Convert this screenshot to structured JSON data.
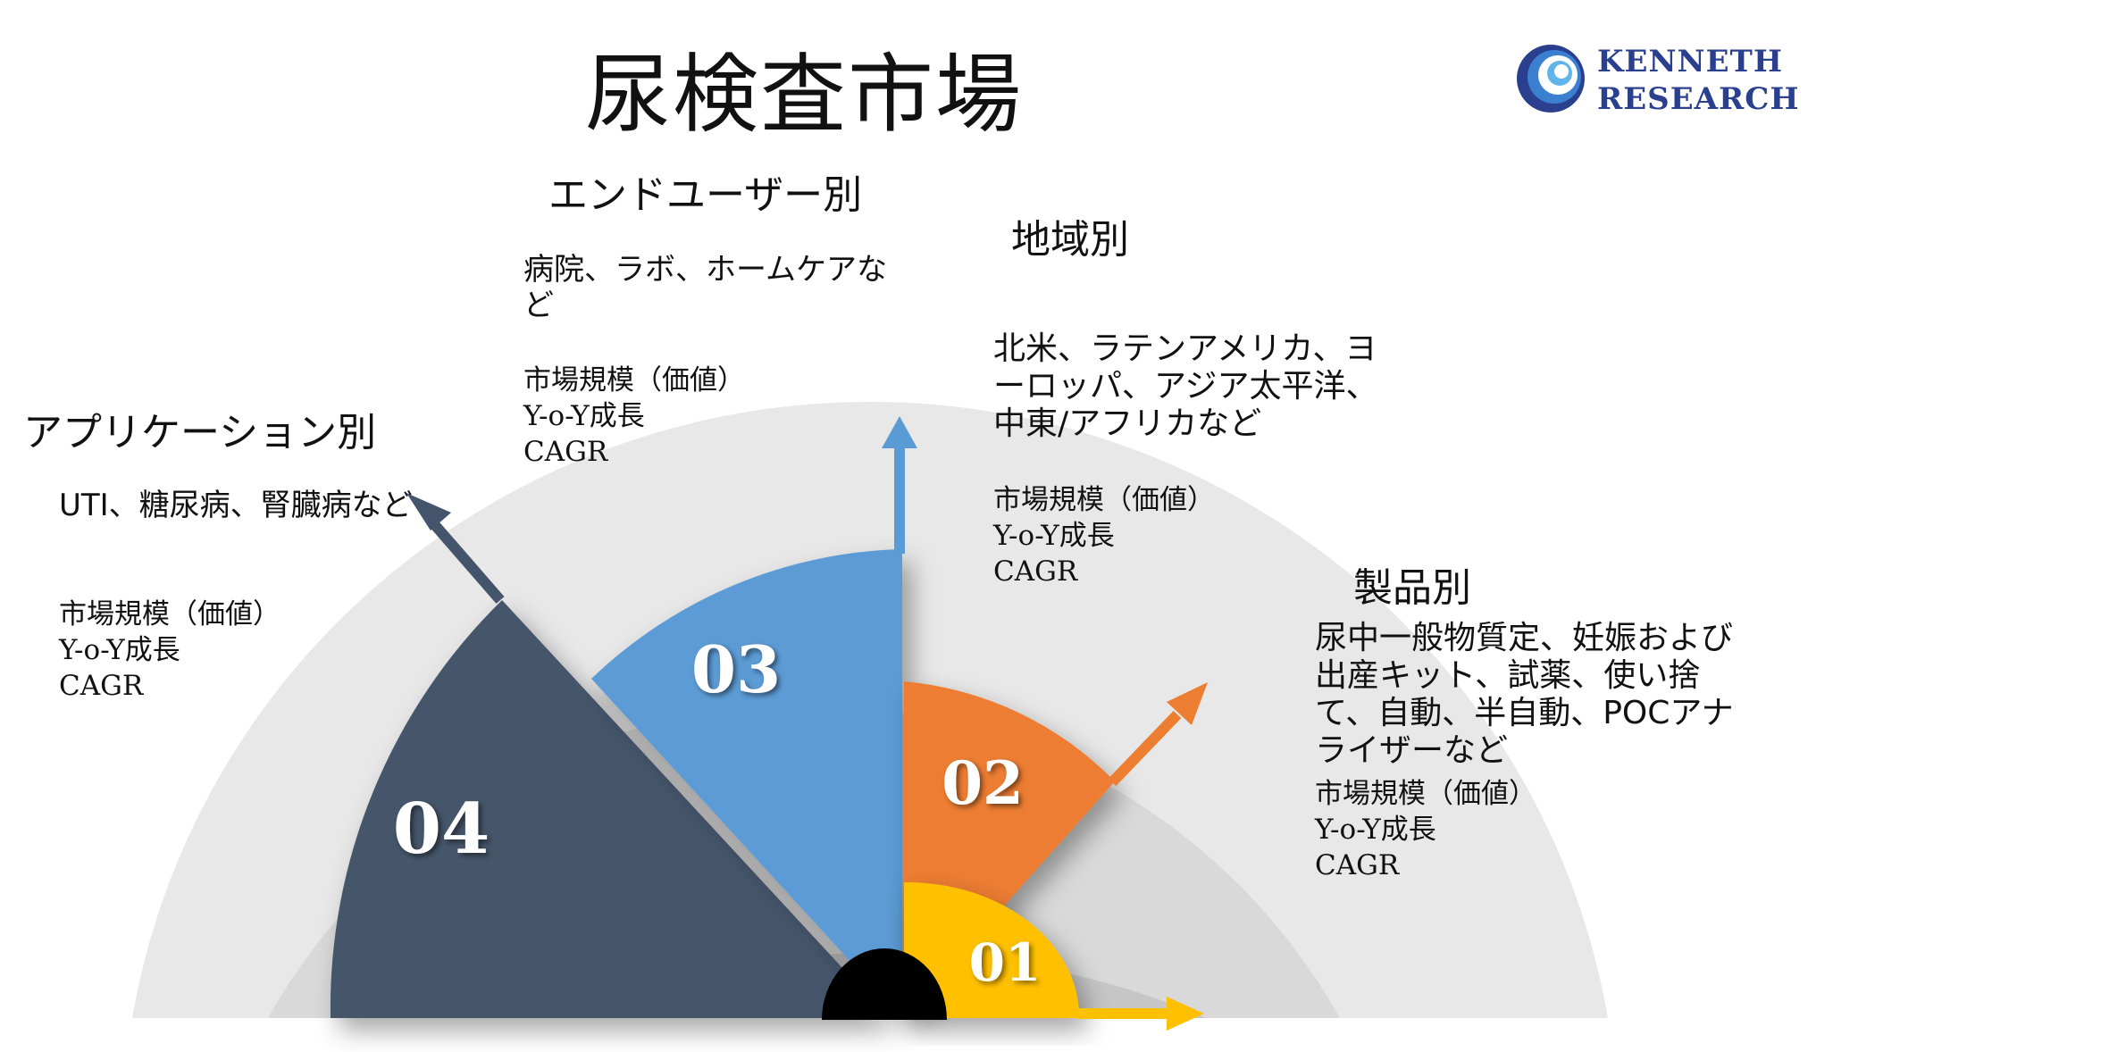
{
  "title": "尿検査市場",
  "logo": {
    "line1": "KENNETH",
    "line2": "RESEARCH"
  },
  "colors": {
    "ring_outer": "#e8e8e8",
    "ring_mid": "#d8d8d8",
    "ring_inner": "#c4c4c4",
    "seg01": "#ffc000",
    "seg02": "#ed7d31",
    "seg03": "#5b9bd5",
    "seg04": "#44546a",
    "hub": "#000000",
    "logo_blue": "#2b3f8f"
  },
  "segments": [
    {
      "number": "01",
      "heading": "製品別",
      "items": "尿中一般物質定、妊娠および出産キット、試薬、使い捨て、自動、半自動、POCアナライザーなど",
      "metrics": [
        "市場規模（価値）",
        "Y-o-Y成長",
        "CAGR"
      ]
    },
    {
      "number": "02",
      "heading": "地域別",
      "items": "北米、ラテンアメリカ、ヨーロッパ、アジア太平洋、中東/アフリカなど",
      "metrics": [
        "市場規模（価値）",
        "Y-o-Y成長",
        "CAGR"
      ]
    },
    {
      "number": "03",
      "heading": "エンドユーザー別",
      "items": "病院、ラボ、ホームケアなど",
      "metrics": [
        "市場規模（価値）",
        "Y-o-Y成長",
        "CAGR"
      ]
    },
    {
      "number": "04",
      "heading": "アプリケーション別",
      "items": "UTI、糖尿病、腎臓病など",
      "metrics": [
        "市場規模（価値）",
        "Y-o-Y成長",
        "CAGR"
      ]
    }
  ]
}
